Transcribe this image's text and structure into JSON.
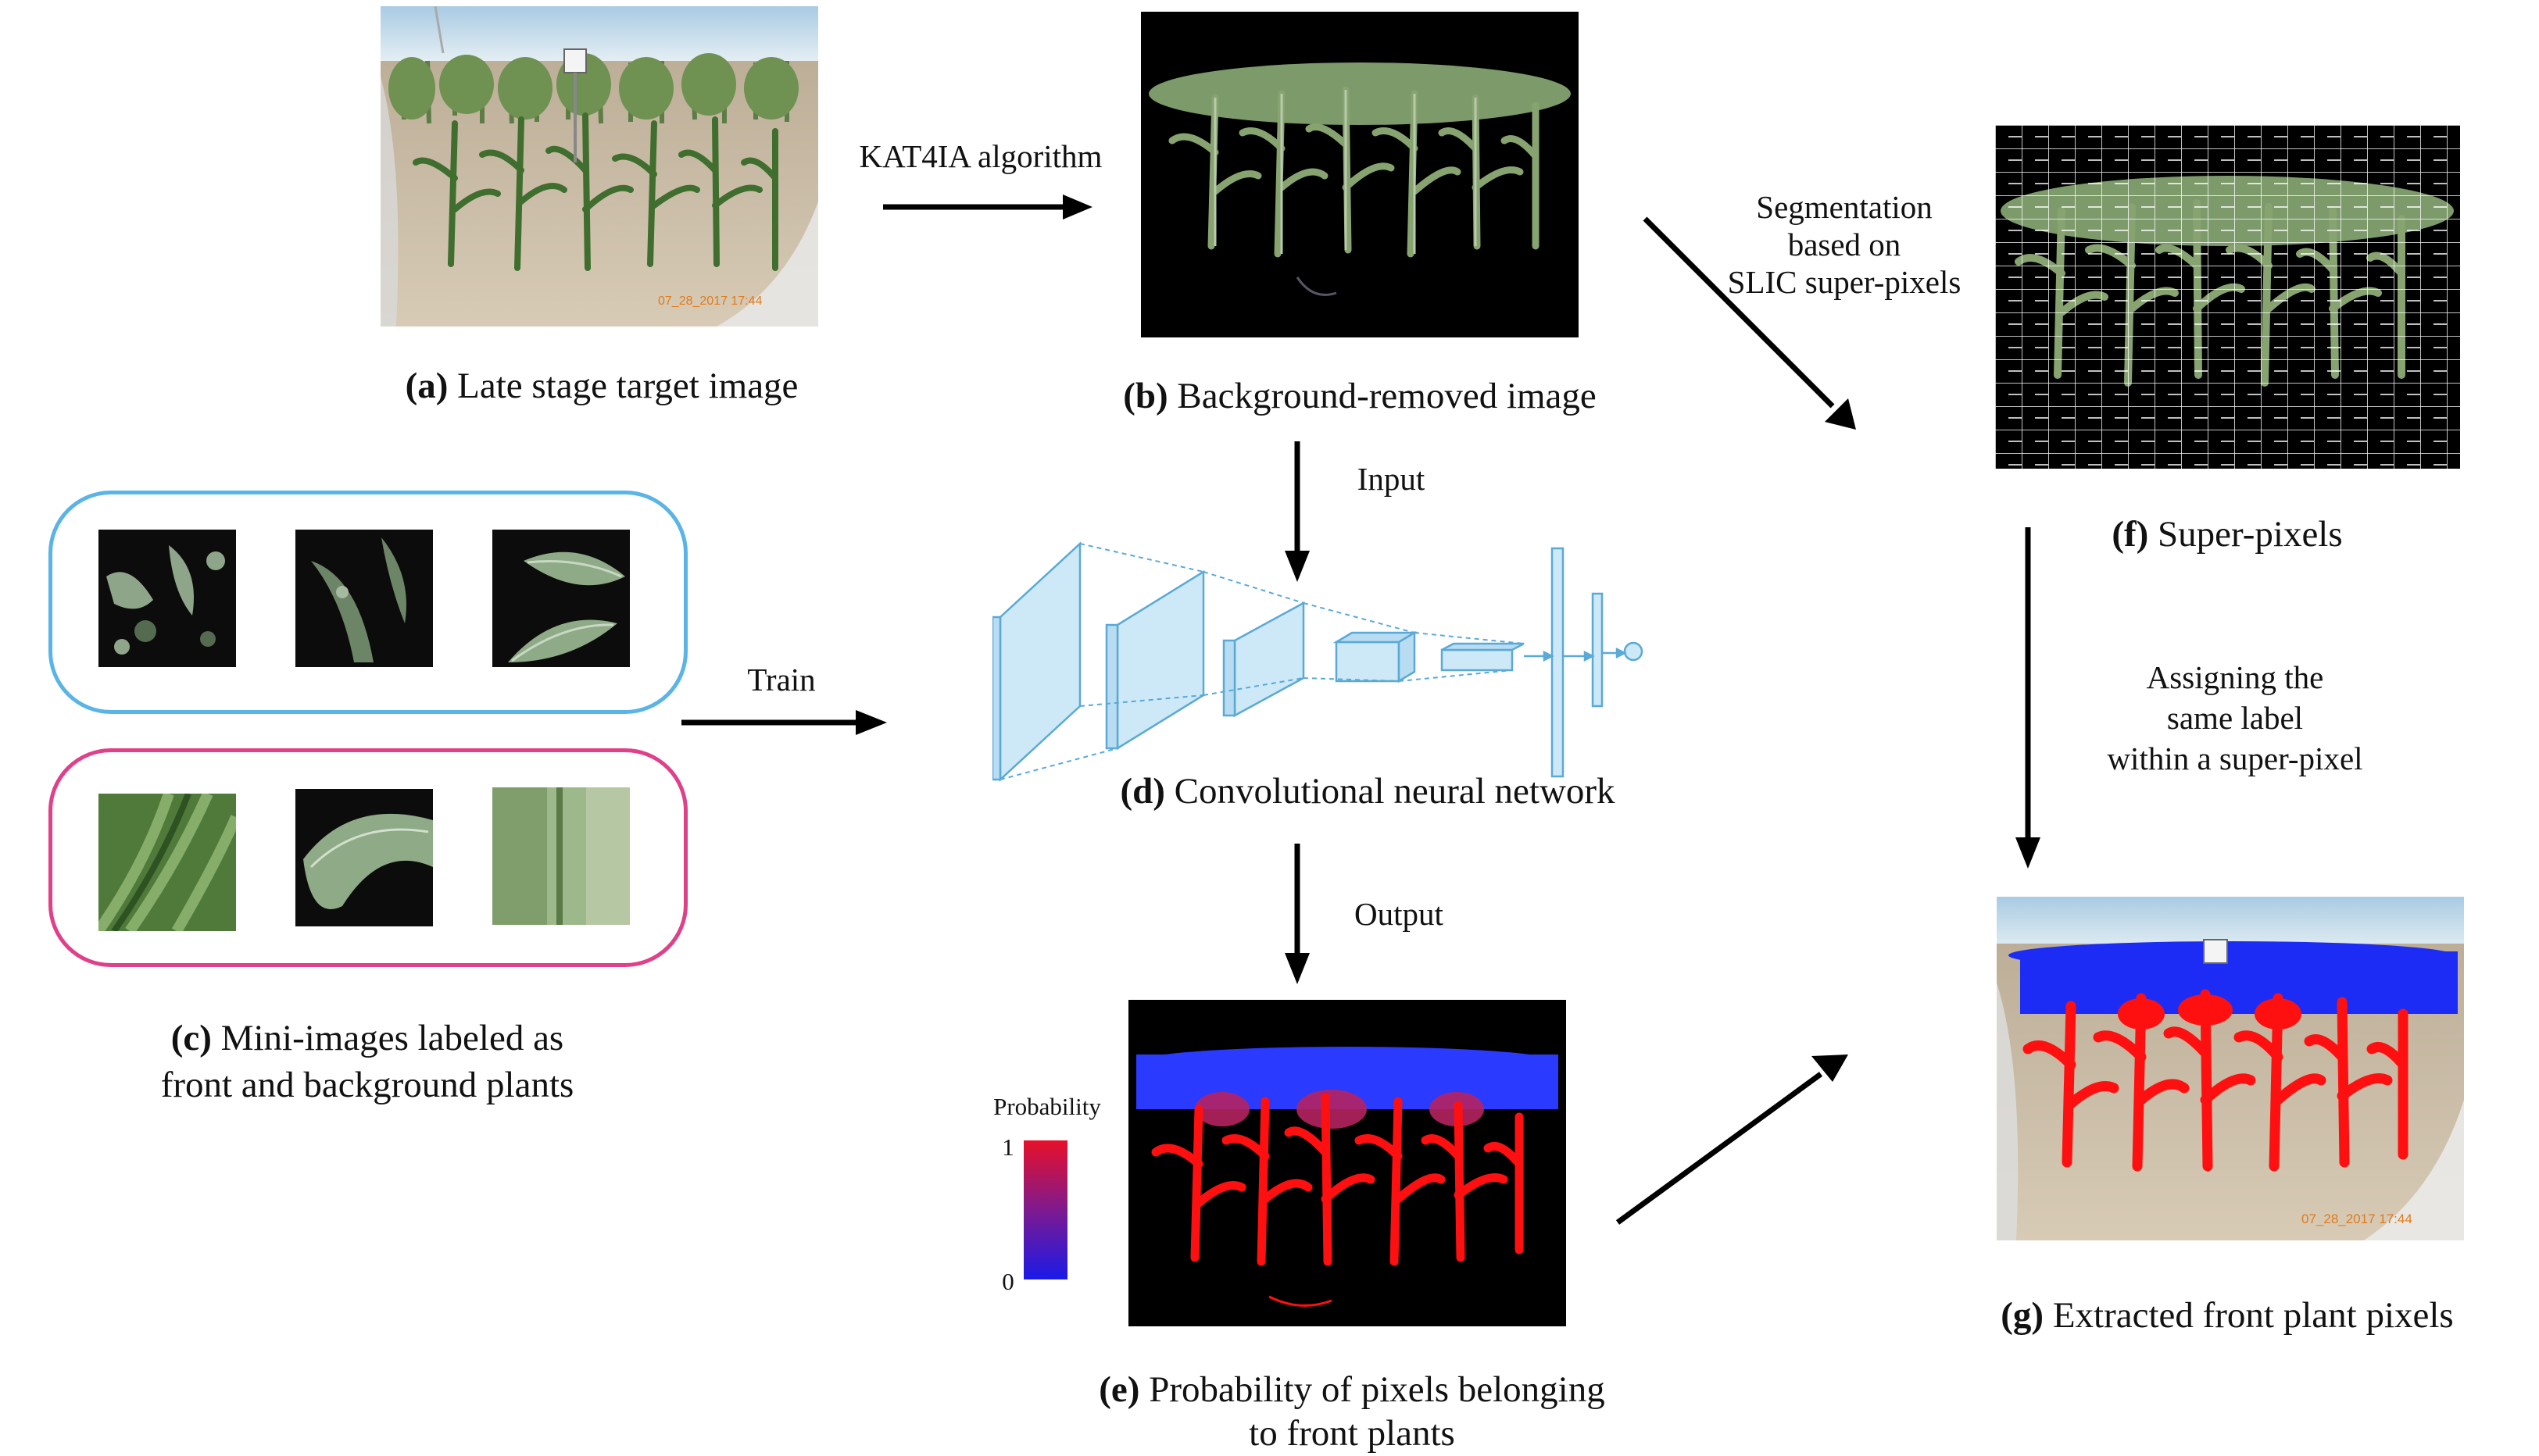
{
  "captions": {
    "a": {
      "letter": "(a)",
      "text": " Late stage target image"
    },
    "b": {
      "letter": "(b)",
      "text": " Background-removed image"
    },
    "c": {
      "letter": "(c)",
      "line1": " Mini-images labeled as",
      "line2": "front and background plants"
    },
    "d": {
      "letter": "(d)",
      "text": " Convolutional neural network"
    },
    "e": {
      "letter": "(e)",
      "line1": " Probability of pixels belonging",
      "line2": "to front plants"
    },
    "f": {
      "letter": "(f)",
      "text": " Super-pixels"
    },
    "g": {
      "letter": "(g)",
      "text": " Extracted front plant pixels"
    }
  },
  "arrows": {
    "kat4ia": "KAT4IA algorithm",
    "segmentation": [
      "Segmentation",
      "based on",
      "SLIC super-pixels"
    ],
    "input": "Input",
    "train": "Train",
    "output": "Output",
    "assigning": [
      "Assigning the",
      "same label",
      "within a super-pixel"
    ]
  },
  "colorbar": {
    "title": "Probability",
    "max": "1",
    "min": "0"
  },
  "timestamps": {
    "a": "07_28_2017  17:44",
    "g": "07_28_2017  17:44"
  },
  "colors": {
    "front_group_border": "#5ab4e6",
    "background_group_border": "#e0408a",
    "cnn_fill": "#cde8f7",
    "cnn_stroke": "#5aa9d6",
    "high_prob": "#ff1010",
    "low_prob": "#1010ff",
    "arrow": "#000000"
  }
}
